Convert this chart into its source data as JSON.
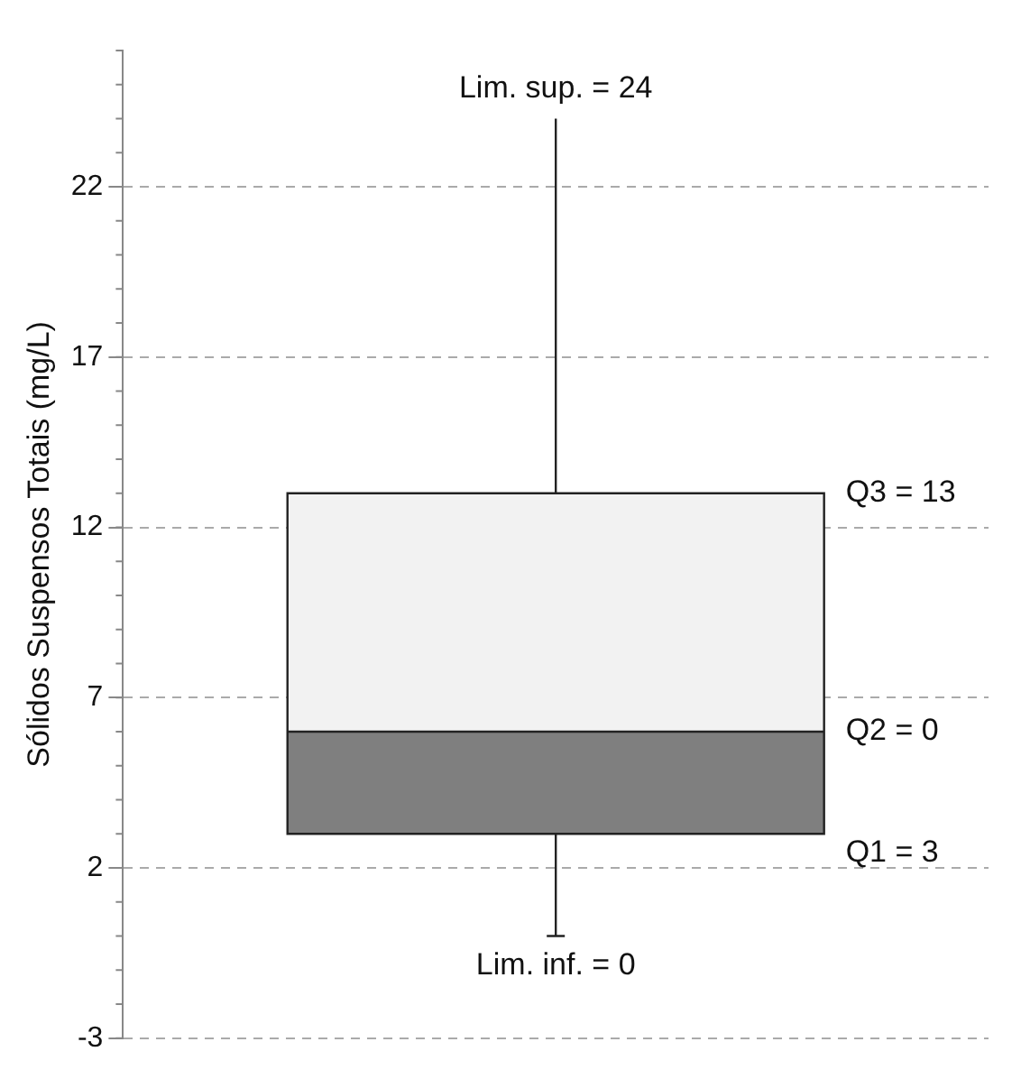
{
  "chart_data": {
    "type": "box",
    "ylabel": "Sólidos Suspensos Totais (mg/L)",
    "categories": [
      null
    ],
    "series": [
      {
        "color": "#7f7f7f",
        "boxes": [
          {
            "low": 0,
            "q1": 3,
            "median": 6,
            "q3": 13,
            "high": 24
          }
        ]
      }
    ],
    "ylim": [
      -3,
      26
    ],
    "yticks": [
      -3,
      2,
      7,
      12,
      17,
      22
    ],
    "grid": "y",
    "annotations": [
      "Lim. sup. = 24",
      "Q3 = 13",
      "Q2 = 0",
      "Q1 = 3",
      "Lim. inf. = 0"
    ]
  }
}
